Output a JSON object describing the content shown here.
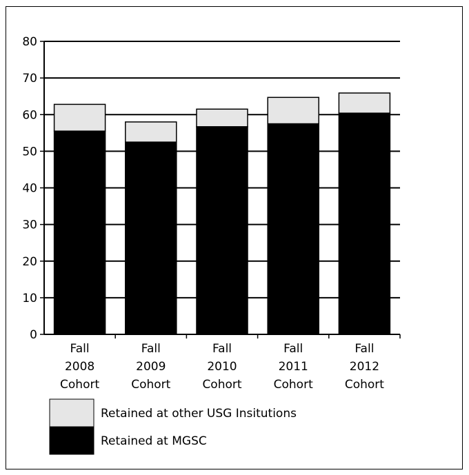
{
  "chart_data": {
    "type": "bar",
    "stacked": true,
    "categories": [
      [
        "Fall",
        "2008",
        "Cohort"
      ],
      [
        "Fall",
        "2009",
        "Cohort"
      ],
      [
        "Fall",
        "2010",
        "Cohort"
      ],
      [
        "Fall",
        "2011",
        "Cohort"
      ],
      [
        "Fall",
        "2012",
        "Cohort"
      ]
    ],
    "series": [
      {
        "name": "Retained at MGSC",
        "values": [
          55.5,
          52.5,
          56.7,
          57.5,
          60.4
        ],
        "color": "#000000"
      },
      {
        "name": "Retained at other USG Insitutions",
        "values": [
          7.3,
          5.5,
          4.8,
          7.2,
          5.5
        ],
        "color": "#e6e6e6"
      }
    ],
    "ylim": [
      0,
      80
    ],
    "yticks": [
      "0",
      "10",
      "20",
      "30",
      "40",
      "50",
      "60",
      "70",
      "80"
    ],
    "grid": true,
    "legend_position": "bottom-left",
    "legend": [
      {
        "label": "Retained at other USG Insitutions",
        "color": "#e6e6e6"
      },
      {
        "label": "Retained at MGSC",
        "color": "#000000"
      }
    ]
  }
}
